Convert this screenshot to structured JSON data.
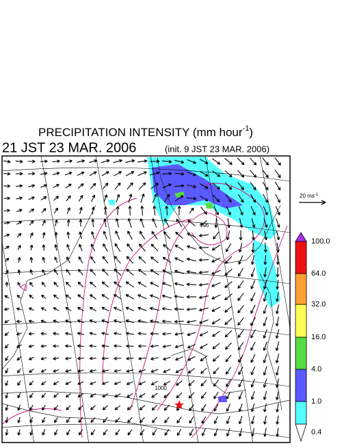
{
  "header": {
    "title": {
      "text": "PRECIPITATION INTENSITY (mm hour",
      "superscript": "-1",
      "end": ")"
    },
    "valid_time": "21 JST 23 MAR. 2006",
    "init_time": "(init. 9 JST 23 MAR. 2006)"
  },
  "wind_reference": {
    "text": "20 ms",
    "superscript": "-1"
  },
  "map": {
    "contour_labels": [
      "996",
      "1000"
    ]
  },
  "colorbar": {
    "levels": [
      0.4,
      {
        "value": 1.0,
        "label": "1.0"
      },
      {
        "value": 4.0,
        "label": "4.0"
      },
      {
        "value": 16.0,
        "label": "16.0"
      },
      {
        "value": 32.0,
        "label": "32.0"
      },
      {
        "value": 64.0,
        "label": "64.0"
      },
      {
        "value": 100.0,
        "label": "100.0"
      }
    ],
    "colors": [
      "#55ffff",
      "#5a5aff",
      "#55dd44",
      "#ffff55",
      "#ffa033",
      "#ee1111"
    ],
    "under_color": "#ffffff",
    "over_color": "#aa33ee"
  }
}
